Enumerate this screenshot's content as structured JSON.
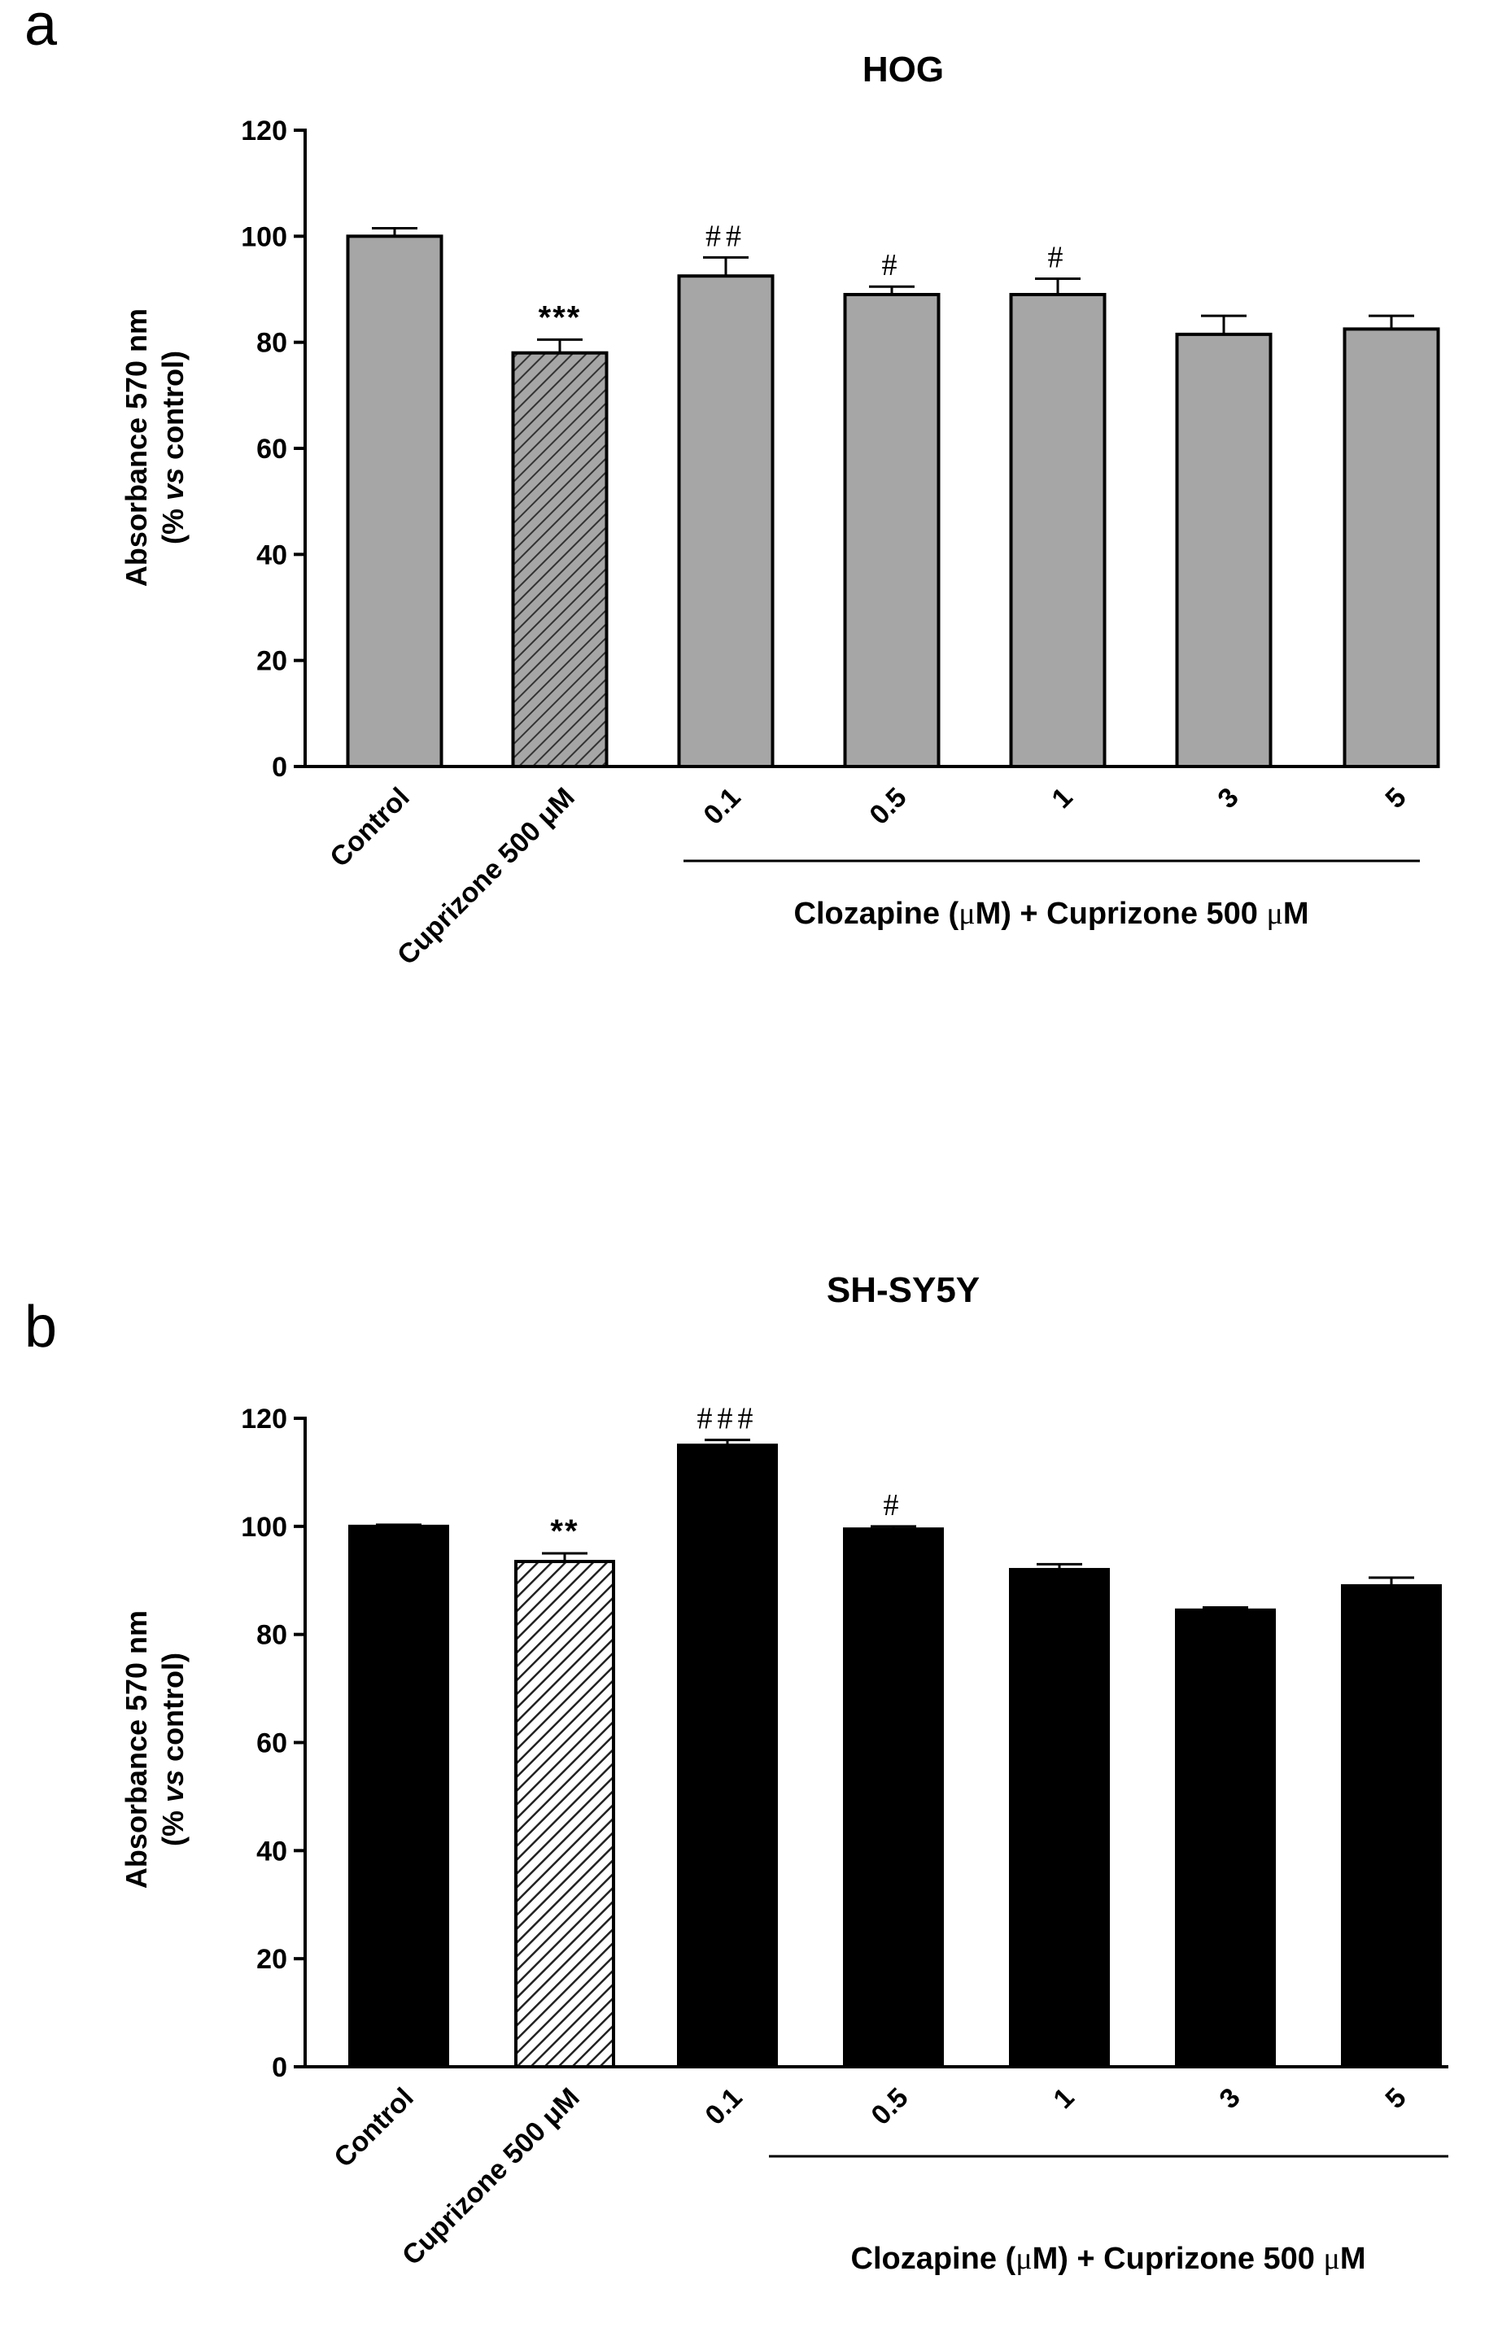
{
  "panel_a_label": "a",
  "panel_b_label": "b",
  "chart_data": [
    {
      "type": "bar",
      "title": "HOG",
      "ylabel_line1": "Absorbance 570 nm",
      "ylabel_line2": "(% vs control)",
      "ylabel_line2_parts": [
        "(%",
        "vs",
        "control)"
      ],
      "ylim": [
        0,
        120
      ],
      "yticks": [
        0,
        20,
        40,
        60,
        80,
        100,
        120
      ],
      "categories": [
        "Control",
        "Cuprizone 500  μM",
        "0.1",
        "0.5",
        "1",
        "3",
        "5"
      ],
      "values": [
        100,
        78,
        92.5,
        89,
        89,
        81.5,
        82.5
      ],
      "errors": [
        1.5,
        2.5,
        3.5,
        1.5,
        3,
        3.5,
        2.5
      ],
      "annotations": [
        "",
        "***",
        "##",
        "#",
        "#",
        "",
        ""
      ],
      "patterns": [
        "solid",
        "hatched",
        "solid",
        "solid",
        "solid",
        "solid",
        "solid"
      ],
      "fill_color": "#a6a6a6",
      "group_label": "Clozapine (μM) + Cuprizone 500 μM",
      "group_label_parts": [
        "Clozapine (",
        "μ",
        "M) + Cuprizone 500 ",
        "μ",
        "M"
      ]
    },
    {
      "type": "bar",
      "title": "SH-SY5Y",
      "ylabel_line1": "Absorbance 570 nm",
      "ylabel_line2": "(% vs control)",
      "ylabel_line2_parts": [
        "(%",
        "vs",
        "control)"
      ],
      "ylim": [
        0,
        120
      ],
      "yticks": [
        0,
        20,
        40,
        60,
        80,
        100,
        120
      ],
      "categories": [
        "Control",
        "Cuprizone 500  μM",
        "0.1",
        "0.5",
        "1",
        "3",
        "5"
      ],
      "values": [
        100,
        93.5,
        115,
        99.5,
        92,
        84.5,
        89
      ],
      "errors": [
        0.3,
        1.5,
        1,
        0.5,
        1,
        0.5,
        1.5
      ],
      "annotations": [
        "",
        "**",
        "###",
        "#",
        "",
        "",
        ""
      ],
      "patterns": [
        "solid",
        "hatched",
        "solid",
        "solid",
        "solid",
        "solid",
        "solid"
      ],
      "fill_color": "#000000",
      "group_label": "Clozapine (μM) + Cuprizone 500 μM",
      "group_label_parts": [
        "Clozapine (",
        "μ",
        "M) + Cuprizone 500 ",
        "μ",
        "M"
      ]
    }
  ]
}
